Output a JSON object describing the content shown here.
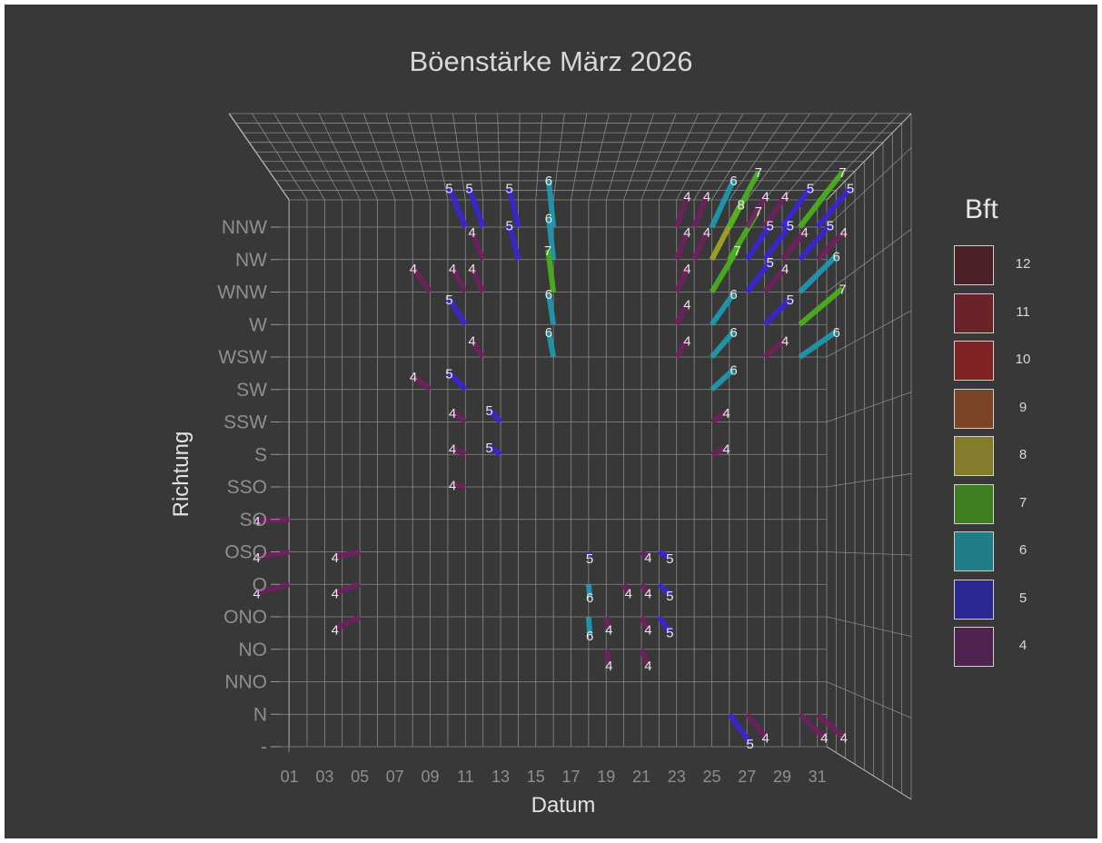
{
  "chart_data": {
    "type": "3d-bar",
    "title": "Böenstärke März 2026",
    "xlabel": "Datum",
    "ylabel": "Richtung",
    "x_ticks": [
      "01",
      "03",
      "05",
      "07",
      "09",
      "11",
      "13",
      "15",
      "17",
      "19",
      "21",
      "23",
      "25",
      "27",
      "29",
      "31"
    ],
    "y_ticks": [
      "-",
      "N",
      "NNO",
      "NO",
      "ONO",
      "O",
      "OSO",
      "SO",
      "SSO",
      "S",
      "SSW",
      "SW",
      "WSW",
      "W",
      "WNW",
      "NW",
      "NNW"
    ],
    "legend_title": "Bft",
    "legend": [
      {
        "label": "12",
        "color": "#4a1f25"
      },
      {
        "label": "11",
        "color": "#6b2228"
      },
      {
        "label": "10",
        "color": "#7e2223"
      },
      {
        "label": "9",
        "color": "#7c4426"
      },
      {
        "label": "8",
        "color": "#847c2a"
      },
      {
        "label": "7",
        "color": "#3f7f22"
      },
      {
        "label": "6",
        "color": "#207c86"
      },
      {
        "label": "5",
        "color": "#2b2790"
      },
      {
        "label": "4",
        "color": "#4f2350"
      }
    ],
    "bft_colors": {
      "4": "#70205e",
      "5": "#3b25d6",
      "6": "#1e9cb2",
      "7": "#4ab31f",
      "8": "#a5a927"
    },
    "points": [
      {
        "day": 1,
        "dir": "SO",
        "bft": 4
      },
      {
        "day": 1,
        "dir": "OSO",
        "bft": 4
      },
      {
        "day": 1,
        "dir": "O",
        "bft": 4
      },
      {
        "day": 5,
        "dir": "OSO",
        "bft": 4
      },
      {
        "day": 5,
        "dir": "O",
        "bft": 4
      },
      {
        "day": 5,
        "dir": "ONO",
        "bft": 4
      },
      {
        "day": 9,
        "dir": "WNW",
        "bft": 4
      },
      {
        "day": 9,
        "dir": "SW",
        "bft": 4
      },
      {
        "day": 11,
        "dir": "NNW",
        "bft": 5
      },
      {
        "day": 11,
        "dir": "WNW",
        "bft": 4
      },
      {
        "day": 11,
        "dir": "W",
        "bft": 5
      },
      {
        "day": 11,
        "dir": "SW",
        "bft": 5
      },
      {
        "day": 11,
        "dir": "SSW",
        "bft": 4
      },
      {
        "day": 11,
        "dir": "S",
        "bft": 4
      },
      {
        "day": 11,
        "dir": "SSO",
        "bft": 4
      },
      {
        "day": 12,
        "dir": "NNW",
        "bft": 5
      },
      {
        "day": 12,
        "dir": "NW",
        "bft": 4
      },
      {
        "day": 12,
        "dir": "WNW",
        "bft": 4
      },
      {
        "day": 12,
        "dir": "WSW",
        "bft": 4
      },
      {
        "day": 13,
        "dir": "SSW",
        "bft": 5
      },
      {
        "day": 13,
        "dir": "S",
        "bft": 5
      },
      {
        "day": 14,
        "dir": "NNW",
        "bft": 5
      },
      {
        "day": 14,
        "dir": "NW",
        "bft": 5
      },
      {
        "day": 16,
        "dir": "NNW",
        "bft": 6
      },
      {
        "day": 16,
        "dir": "NW",
        "bft": 6
      },
      {
        "day": 16,
        "dir": "WNW",
        "bft": 7
      },
      {
        "day": 16,
        "dir": "W",
        "bft": 6
      },
      {
        "day": 16,
        "dir": "WSW",
        "bft": 6
      },
      {
        "day": 18,
        "dir": "OSO",
        "bft": 5
      },
      {
        "day": 18,
        "dir": "O",
        "bft": 6
      },
      {
        "day": 18,
        "dir": "ONO",
        "bft": 6
      },
      {
        "day": 19,
        "dir": "ONO",
        "bft": 4
      },
      {
        "day": 19,
        "dir": "NO",
        "bft": 4
      },
      {
        "day": 20,
        "dir": "O",
        "bft": 4
      },
      {
        "day": 21,
        "dir": "OSO",
        "bft": 4
      },
      {
        "day": 21,
        "dir": "O",
        "bft": 4
      },
      {
        "day": 21,
        "dir": "ONO",
        "bft": 4
      },
      {
        "day": 21,
        "dir": "NO",
        "bft": 4
      },
      {
        "day": 22,
        "dir": "OSO",
        "bft": 5
      },
      {
        "day": 22,
        "dir": "O",
        "bft": 5
      },
      {
        "day": 22,
        "dir": "ONO",
        "bft": 5
      },
      {
        "day": 23,
        "dir": "NNW",
        "bft": 4
      },
      {
        "day": 23,
        "dir": "NW",
        "bft": 4
      },
      {
        "day": 23,
        "dir": "WNW",
        "bft": 4
      },
      {
        "day": 23,
        "dir": "W",
        "bft": 4
      },
      {
        "day": 23,
        "dir": "WSW",
        "bft": 4
      },
      {
        "day": 24,
        "dir": "NNW",
        "bft": 4
      },
      {
        "day": 24,
        "dir": "NW",
        "bft": 4
      },
      {
        "day": 25,
        "dir": "NNW",
        "bft": 6
      },
      {
        "day": 25,
        "dir": "NW",
        "bft": 8
      },
      {
        "day": 25,
        "dir": "WNW",
        "bft": 7
      },
      {
        "day": 25,
        "dir": "W",
        "bft": 6
      },
      {
        "day": 25,
        "dir": "WSW",
        "bft": 6
      },
      {
        "day": 25,
        "dir": "SW",
        "bft": 6
      },
      {
        "day": 25,
        "dir": "SSW",
        "bft": 4
      },
      {
        "day": 25,
        "dir": "S",
        "bft": 4
      },
      {
        "day": 26,
        "dir": "NNW",
        "bft": 7
      },
      {
        "day": 26,
        "dir": "NW",
        "bft": 7
      },
      {
        "day": 26,
        "dir": "N",
        "bft": 5
      },
      {
        "day": 27,
        "dir": "NNW",
        "bft": 4
      },
      {
        "day": 27,
        "dir": "NW",
        "bft": 5
      },
      {
        "day": 27,
        "dir": "WNW",
        "bft": 5
      },
      {
        "day": 27,
        "dir": "N",
        "bft": 4
      },
      {
        "day": 28,
        "dir": "NNW",
        "bft": 4
      },
      {
        "day": 28,
        "dir": "NW",
        "bft": 5
      },
      {
        "day": 28,
        "dir": "WNW",
        "bft": 4
      },
      {
        "day": 28,
        "dir": "W",
        "bft": 5
      },
      {
        "day": 28,
        "dir": "WSW",
        "bft": 4
      },
      {
        "day": 29,
        "dir": "NNW",
        "bft": 5
      },
      {
        "day": 29,
        "dir": "NW",
        "bft": 4
      },
      {
        "day": 30,
        "dir": "NNW",
        "bft": 7
      },
      {
        "day": 30,
        "dir": "NW",
        "bft": 5
      },
      {
        "day": 30,
        "dir": "WNW",
        "bft": 6
      },
      {
        "day": 30,
        "dir": "W",
        "bft": 7
      },
      {
        "day": 30,
        "dir": "WSW",
        "bft": 6
      },
      {
        "day": 30,
        "dir": "N",
        "bft": 4
      },
      {
        "day": 31,
        "dir": "NNW",
        "bft": 5
      },
      {
        "day": 31,
        "dir": "NW",
        "bft": 4
      },
      {
        "day": 31,
        "dir": "N",
        "bft": 4
      }
    ]
  }
}
